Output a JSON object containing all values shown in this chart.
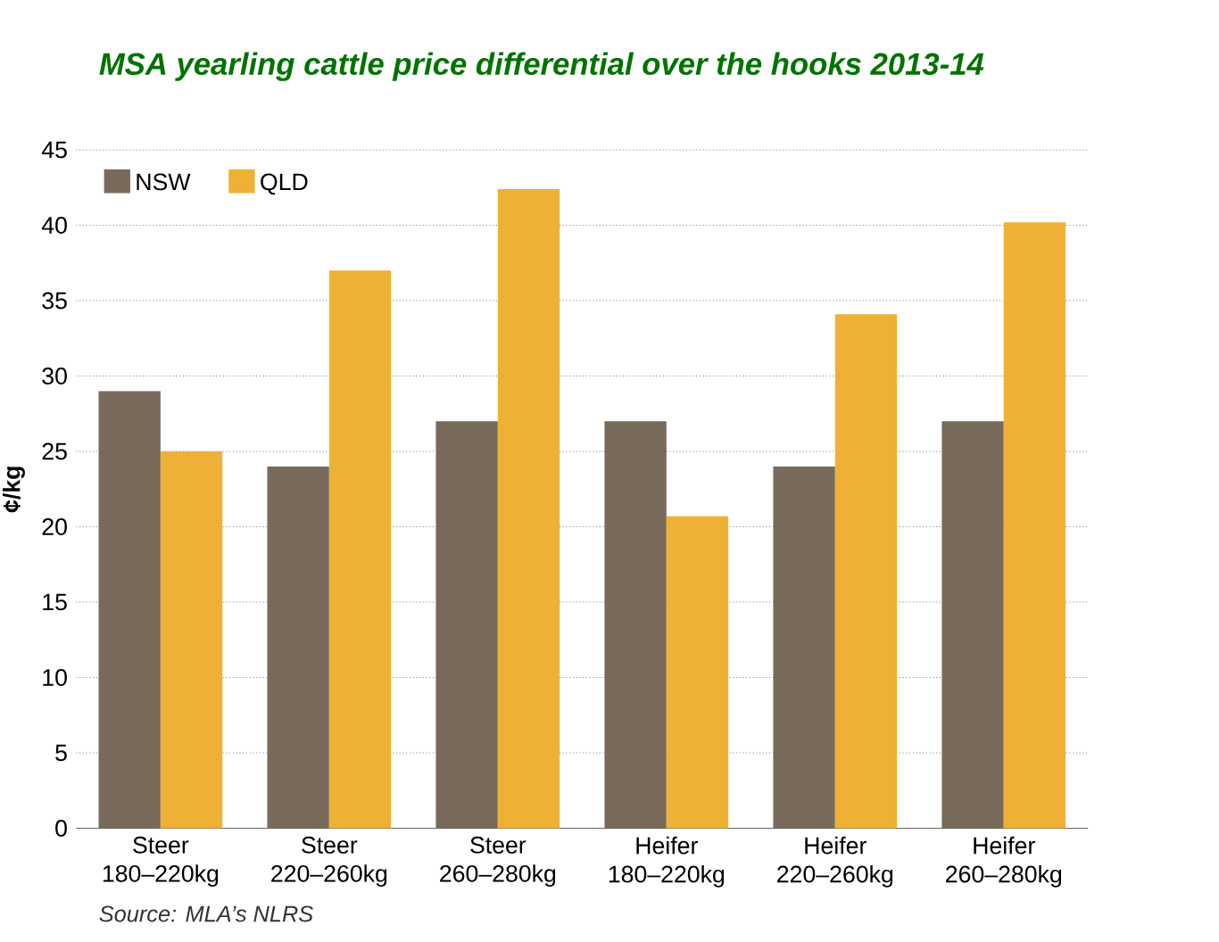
{
  "chart_data": {
    "type": "bar",
    "title": "MSA yearling cattle price differential over the hooks 2013-14",
    "ylabel": "¢/kg",
    "categories": [
      "Steer 180–220kg",
      "Steer 220–260kg",
      "Steer 260–280kg",
      "Heifer 180–220kg",
      "Heifer 220–260kg",
      "Heifer 260–280kg"
    ],
    "series": [
      {
        "name": "NSW",
        "color": "#786a5a",
        "values": [
          29,
          24,
          27,
          27,
          24,
          27
        ]
      },
      {
        "name": "QLD",
        "color": "#efb135",
        "values": [
          25,
          37,
          42.4,
          20.7,
          34.1,
          40.2
        ]
      }
    ],
    "ylim": [
      0,
      45
    ],
    "yticks": [
      0,
      5,
      10,
      15,
      20,
      25,
      30,
      35,
      40,
      45
    ],
    "grid": "y",
    "legend": "top left",
    "annotations": [
      "Source: MLA’s NLRS"
    ]
  }
}
